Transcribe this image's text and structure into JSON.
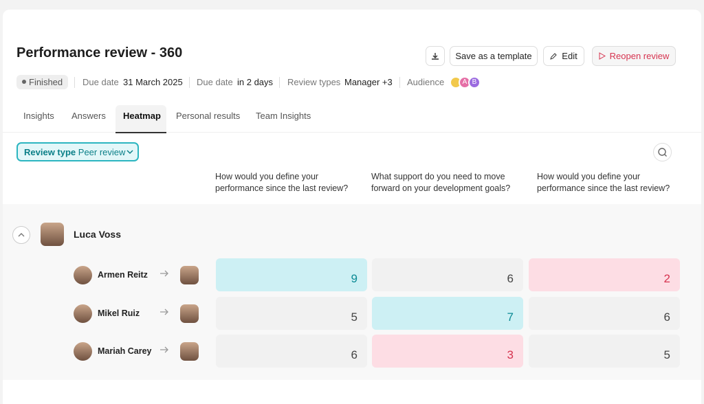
{
  "header": {
    "title": "Performance review - 360",
    "actions": [
      "Save as a template",
      "Edit",
      "Reopen review"
    ]
  },
  "meta": {
    "status": "Finished",
    "due_date_label": "Due date",
    "due_date": "31 March 2025",
    "due_in_label": "Due date",
    "due_in": "in 2 days",
    "review_types_label": "Review types",
    "review_types": "Manager +3",
    "audience_label": "Audience",
    "audience_avatars": [
      "A",
      "B"
    ]
  },
  "tabs": [
    "Insights",
    "Answers",
    "Heatmap",
    "Personal results",
    "Team Insights"
  ],
  "filter": {
    "label": "Review type",
    "value": "Peer review"
  },
  "questions": [
    "How would you define your performance since the last review?",
    "What support do you need to move forward on your development goals?",
    "How would you define your performance since the last review?"
  ],
  "reviewee": {
    "name": "Luca Voss"
  },
  "rows": [
    {
      "reviewer": "Armen Reitz",
      "scores": [
        {
          "value": 9,
          "tone": "high"
        },
        {
          "value": 6,
          "tone": "neutral"
        },
        {
          "value": 2,
          "tone": "low"
        }
      ]
    },
    {
      "reviewer": "Mikel  Ruiz",
      "scores": [
        {
          "value": 5,
          "tone": "neutral"
        },
        {
          "value": 7,
          "tone": "high"
        },
        {
          "value": 6,
          "tone": "neutral"
        }
      ]
    },
    {
      "reviewer": "Mariah Carey",
      "scores": [
        {
          "value": 6,
          "tone": "neutral"
        },
        {
          "value": 3,
          "tone": "low"
        },
        {
          "value": 5,
          "tone": "neutral"
        }
      ]
    }
  ]
}
